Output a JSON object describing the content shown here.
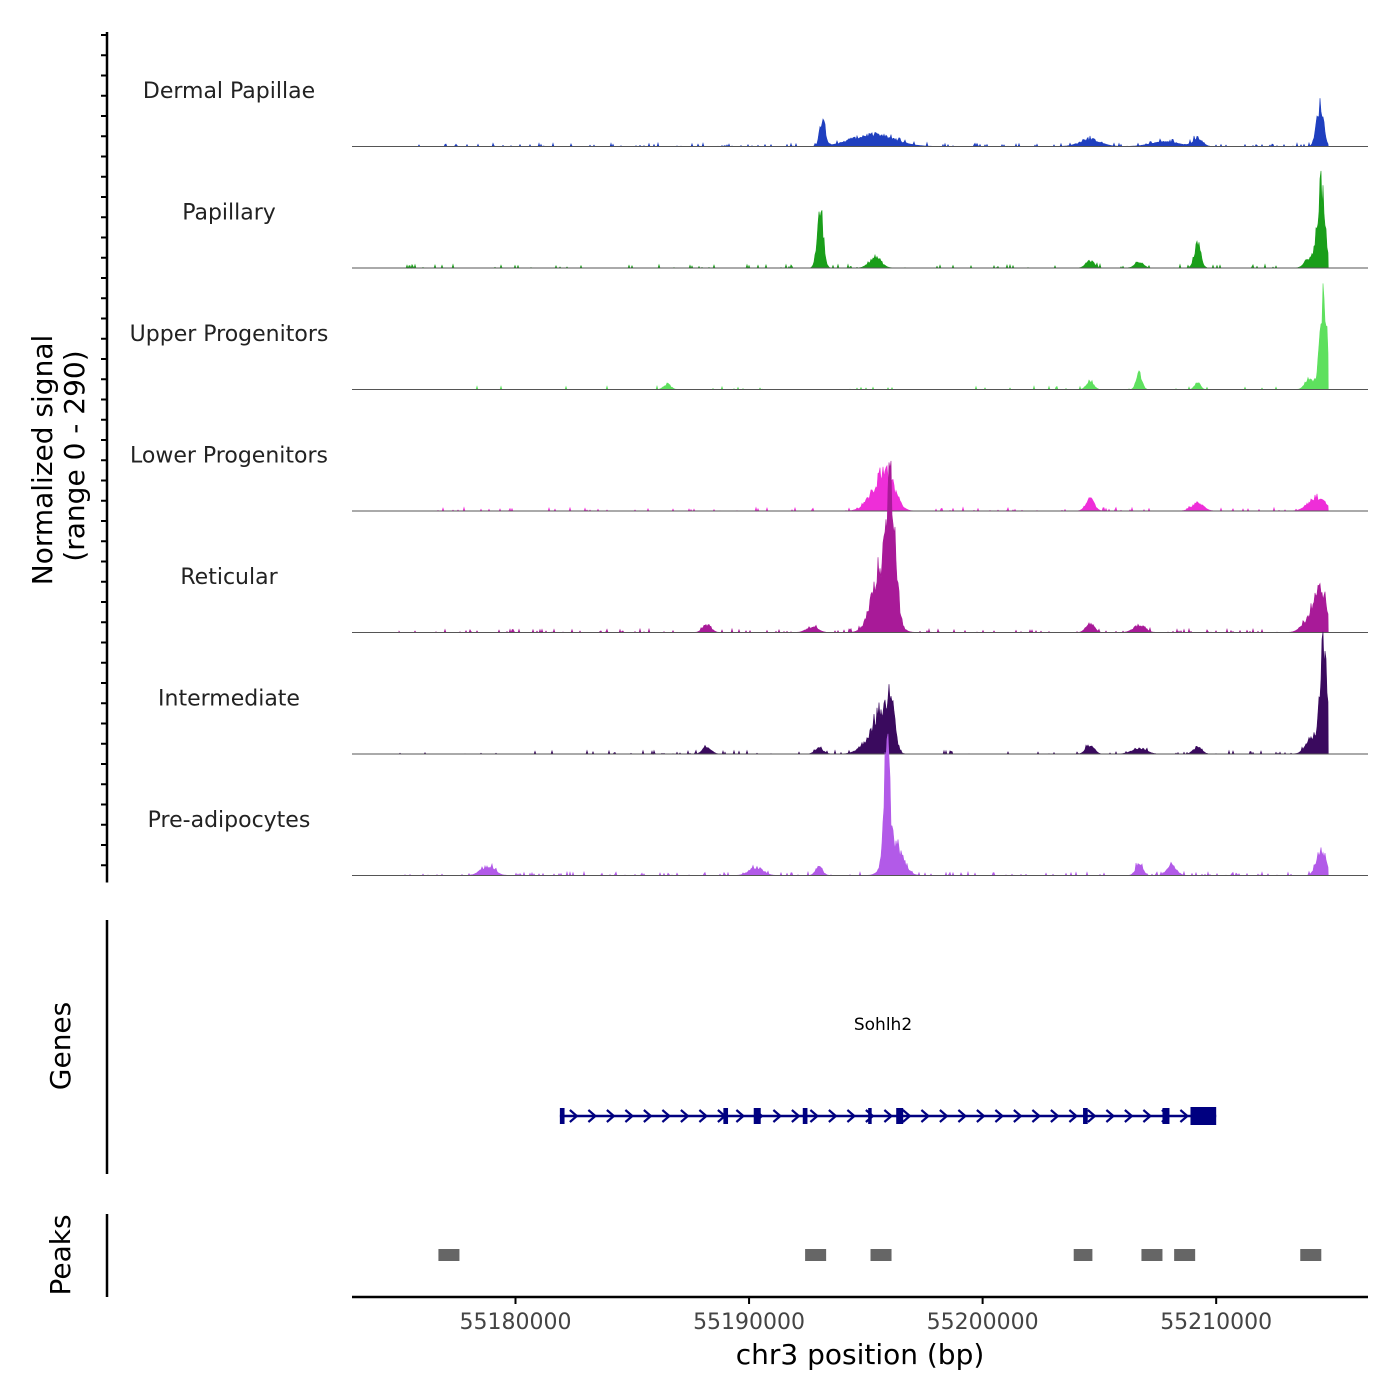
{
  "chart_data": {
    "type": "area",
    "title": "",
    "xlabel": "chr3 position (bp)",
    "ylabel": [
      "Normalized signal",
      "(range 0 - 290)"
    ],
    "ylim": [
      0,
      290
    ],
    "xlim": [
      55173000,
      55216500
    ],
    "xticks": [
      55180000,
      55190000,
      55200000,
      55210000
    ],
    "xtick_labels": [
      "55180000",
      "55190000",
      "55200000",
      "55210000"
    ],
    "signal_region": [
      55175000,
      55214800
    ],
    "tracks": [
      {
        "name": "Dermal Papillae",
        "color": "#1f3fbf",
        "peaks": [
          [
            55193150,
            70,
            120
          ],
          [
            55195300,
            30,
            900
          ],
          [
            55204600,
            18,
            450
          ],
          [
            55207800,
            12,
            600
          ],
          [
            55209200,
            22,
            200
          ],
          [
            55214450,
            105,
            150
          ]
        ],
        "noise": 0.07
      },
      {
        "name": "Papillary",
        "color": "#1a9e1a",
        "peaks": [
          [
            55193050,
            145,
            130
          ],
          [
            55195400,
            28,
            250
          ],
          [
            55204600,
            18,
            180
          ],
          [
            55206700,
            15,
            180
          ],
          [
            55209200,
            60,
            140
          ],
          [
            55214500,
            205,
            160
          ],
          [
            55214000,
            25,
            200
          ]
        ],
        "noise": 0.04
      },
      {
        "name": "Upper Progenitors",
        "color": "#5ee05e",
        "peaks": [
          [
            55186500,
            14,
            150
          ],
          [
            55204600,
            22,
            150
          ],
          [
            55206700,
            40,
            120
          ],
          [
            55209200,
            18,
            120
          ],
          [
            55214600,
            230,
            150
          ],
          [
            55214000,
            30,
            180
          ]
        ],
        "noise": 0.02
      },
      {
        "name": "Lower Progenitors",
        "color": "#ee2ed8",
        "peaks": [
          [
            55195900,
            85,
            350
          ],
          [
            55195400,
            35,
            400
          ],
          [
            55204600,
            30,
            180
          ],
          [
            55209200,
            20,
            250
          ],
          [
            55214300,
            35,
            350
          ]
        ],
        "noise": 0.04
      },
      {
        "name": "Reticular",
        "color": "#a81a98",
        "peaks": [
          [
            55196100,
            290,
            180
          ],
          [
            55195700,
            170,
            400
          ],
          [
            55188200,
            20,
            180
          ],
          [
            55192700,
            14,
            250
          ],
          [
            55204600,
            22,
            180
          ],
          [
            55206700,
            18,
            250
          ],
          [
            55214500,
            110,
            250
          ],
          [
            55214000,
            35,
            300
          ]
        ],
        "noise": 0.05
      },
      {
        "name": "Intermediate",
        "color": "#3a0a5e",
        "peaks": [
          [
            55196100,
            130,
            150
          ],
          [
            55195700,
            95,
            300
          ],
          [
            55195200,
            35,
            400
          ],
          [
            55188200,
            18,
            180
          ],
          [
            55193000,
            14,
            180
          ],
          [
            55204600,
            22,
            180
          ],
          [
            55206700,
            15,
            300
          ],
          [
            55209200,
            18,
            180
          ],
          [
            55214600,
            280,
            140
          ],
          [
            55214100,
            45,
            250
          ]
        ],
        "noise": 0.04
      },
      {
        "name": "Pre-adipocytes",
        "color": "#b25ae8",
        "peaks": [
          [
            55195900,
            285,
            110
          ],
          [
            55196200,
            80,
            350
          ],
          [
            55178800,
            22,
            300
          ],
          [
            55190300,
            20,
            300
          ],
          [
            55193000,
            22,
            150
          ],
          [
            55206700,
            30,
            150
          ],
          [
            55208100,
            28,
            200
          ],
          [
            55214500,
            65,
            200
          ]
        ],
        "noise": 0.08
      }
    ],
    "gene": {
      "label": "Sohlh2",
      "start": 55181900,
      "end": 55210000,
      "strand": "+",
      "color": "#000080",
      "exons": [
        [
          55181900,
          55182100
        ],
        [
          55188900,
          55189100
        ],
        [
          55190200,
          55190500
        ],
        [
          55192300,
          55192500
        ],
        [
          55195100,
          55195250
        ],
        [
          55196300,
          55196600
        ],
        [
          55204300,
          55204500
        ],
        [
          55207700,
          55208000
        ],
        [
          55208900,
          55210000
        ]
      ]
    },
    "peaks_track": {
      "label": "Peaks",
      "color": "#666666",
      "regions": [
        [
          55176700,
          55177600
        ],
        [
          55192400,
          55193300
        ],
        [
          55195200,
          55196100
        ],
        [
          55203900,
          55204700
        ],
        [
          55206800,
          55207700
        ],
        [
          55208200,
          55209100
        ],
        [
          55213600,
          55214500
        ]
      ]
    },
    "genes_label": "Genes"
  }
}
